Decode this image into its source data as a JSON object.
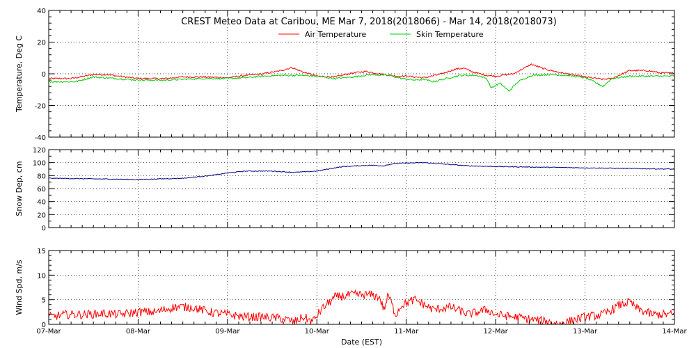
{
  "chart_data": [
    {
      "type": "line",
      "title": "CREST Meteo Data at Caribou, ME   Mar  7, 2018(2018066) - Mar 14, 2018(2018073)",
      "ylabel": "Temperature, Deg C",
      "ylim": [
        -40,
        40
      ],
      "yticks": [
        -40,
        -20,
        0,
        20,
        40
      ],
      "x_labels": [
        "07-Mar",
        "08-Mar",
        "09-Mar",
        "10-Mar",
        "11-Mar",
        "12-Mar",
        "13-Mar",
        "14-Mar"
      ],
      "grid": true,
      "legend": "top-center",
      "series": [
        {
          "name": "Air Temperature",
          "color": "#ff0000",
          "x": [
            0,
            0.25,
            0.5,
            0.65,
            0.85,
            1.0,
            1.3,
            1.5,
            1.7,
            2.0,
            2.2,
            2.4,
            2.6,
            2.72,
            2.85,
            3.0,
            3.2,
            3.4,
            3.55,
            3.75,
            3.9,
            4.0,
            4.2,
            4.4,
            4.55,
            4.65,
            4.75,
            4.9,
            5.0,
            5.2,
            5.4,
            5.55,
            5.7,
            5.9,
            6.0,
            6.2,
            6.3,
            6.5,
            6.7,
            6.85,
            7.0
          ],
          "values": [
            -3,
            -3,
            -0.5,
            -0.5,
            -2,
            -3,
            -3,
            -2,
            -2,
            -2.5,
            -1,
            0,
            2,
            4,
            1,
            -1.5,
            -2,
            0.5,
            1.5,
            -0.5,
            -1.5,
            -1.5,
            -2.5,
            0,
            3,
            3.5,
            1,
            -1,
            -1.5,
            0,
            6,
            3,
            1,
            -1,
            -2,
            -3.5,
            -3,
            2,
            2,
            0.5,
            0.5
          ]
        },
        {
          "name": "Skin Temperature",
          "color": "#00cc00",
          "x": [
            0,
            0.3,
            0.5,
            0.75,
            1.0,
            1.3,
            1.5,
            1.7,
            2.0,
            2.2,
            2.4,
            2.6,
            2.8,
            3.0,
            3.2,
            3.4,
            3.6,
            3.8,
            3.95,
            4.1,
            4.2,
            4.3,
            4.45,
            4.6,
            4.8,
            4.9,
            4.95,
            5.05,
            5.15,
            5.25,
            5.4,
            5.6,
            5.8,
            6.0,
            6.1,
            6.2,
            6.3,
            6.5,
            6.7,
            7.0
          ],
          "values": [
            -5,
            -5,
            -2,
            -3,
            -4,
            -4,
            -3.5,
            -3,
            -3,
            -2.5,
            -1.5,
            -1,
            -1,
            -1.5,
            -3,
            -2,
            -0.5,
            -1,
            -3,
            -4,
            -3.5,
            -5,
            -3,
            -1,
            -1,
            -3,
            -9,
            -6,
            -11,
            -5,
            -1,
            -0.5,
            -1,
            -2.5,
            -5,
            -8,
            -3,
            -1.5,
            -1.5,
            -1.5
          ]
        }
      ]
    },
    {
      "type": "line",
      "ylabel": "Snow Dep, cm",
      "ylim": [
        0,
        120
      ],
      "yticks": [
        0,
        20,
        40,
        60,
        80,
        100,
        120
      ],
      "x_labels": [
        "07-Mar",
        "08-Mar",
        "09-Mar",
        "10-Mar",
        "11-Mar",
        "12-Mar",
        "13-Mar",
        "14-Mar"
      ],
      "grid": true,
      "series": [
        {
          "color": "#000080",
          "x": [
            0,
            0.5,
            1.0,
            1.5,
            1.8,
            2.0,
            2.2,
            2.5,
            2.75,
            3.0,
            3.2,
            3.3,
            3.6,
            3.75,
            3.8,
            3.9,
            4.2,
            4.4,
            4.7,
            5.0,
            5.5,
            6.0,
            7.0
          ],
          "values": [
            76,
            75,
            74,
            76,
            80,
            84,
            87,
            87,
            85,
            87,
            92,
            94,
            96,
            95,
            97,
            99,
            100,
            98,
            95,
            94,
            93,
            92,
            90
          ]
        }
      ]
    },
    {
      "type": "line",
      "ylabel": "Wind Spd, m/s",
      "xlabel": "Date (EST)",
      "ylim": [
        0,
        15
      ],
      "yticks": [
        0,
        5,
        10,
        15
      ],
      "x_labels": [
        "07-Mar",
        "08-Mar",
        "09-Mar",
        "10-Mar",
        "11-Mar",
        "12-Mar",
        "13-Mar",
        "14-Mar"
      ],
      "grid": true,
      "series": [
        {
          "color": "#ff0000",
          "x": [
            0,
            0.2,
            0.4,
            0.6,
            0.8,
            1.0,
            1.2,
            1.4,
            1.6,
            1.8,
            2.0,
            2.2,
            2.4,
            2.6,
            2.75,
            2.85,
            2.95,
            3.05,
            3.2,
            3.4,
            3.6,
            3.7,
            3.75,
            3.8,
            3.88,
            3.95,
            4.1,
            4.3,
            4.5,
            4.7,
            4.9,
            5.0,
            5.2,
            5.4,
            5.6,
            5.7,
            5.8,
            6.0,
            6.2,
            6.4,
            6.5,
            6.6,
            6.75,
            7.0
          ],
          "values": [
            1.5,
            2,
            2,
            2.2,
            2,
            2.5,
            2.5,
            3.5,
            3.5,
            2.5,
            2,
            1.5,
            1.5,
            1.2,
            0.5,
            1.5,
            0.5,
            3,
            5.5,
            6,
            6,
            5.5,
            3,
            6,
            2,
            4,
            5,
            3,
            3.5,
            2,
            3,
            2,
            1.5,
            1,
            0.5,
            0,
            0.5,
            1.5,
            2,
            4,
            4.5,
            3,
            2,
            2
          ]
        }
      ]
    }
  ]
}
